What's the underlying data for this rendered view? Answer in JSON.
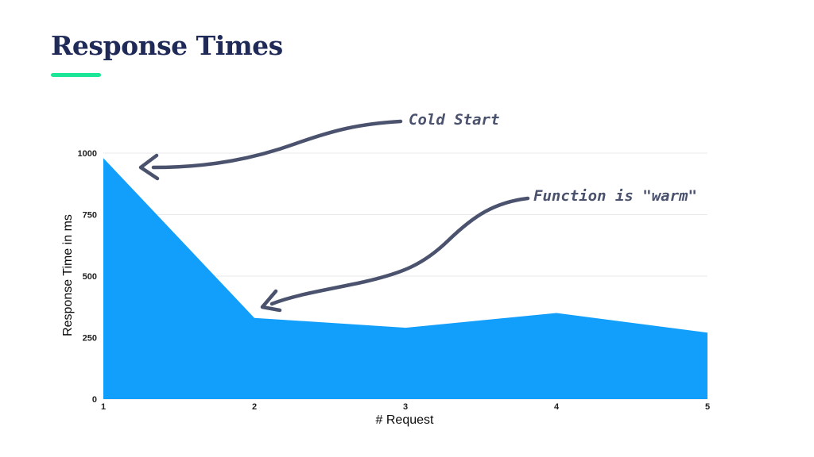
{
  "slide": {
    "title": "Response Times",
    "colors": {
      "title": "#202A58",
      "accent": "#1BE596",
      "area_fill": "#129EFB",
      "annotation_ink": "#4A526E",
      "gridline": "#EAEAEA",
      "axis_text": "#1F1F1F"
    }
  },
  "chart_data": {
    "type": "area",
    "title": "Response Times",
    "xlabel": "# Request",
    "ylabel": "Response Time in ms",
    "x": [
      1,
      2,
      3,
      4,
      5
    ],
    "series": [
      {
        "name": "Response Time in ms",
        "values": [
          980,
          330,
          290,
          350,
          270
        ]
      }
    ],
    "unit": "ms",
    "xlim": [
      1,
      5
    ],
    "ylim": [
      0,
      1000
    ],
    "xticks": [
      1,
      2,
      3,
      4,
      5
    ],
    "yticks": [
      0,
      250,
      500,
      750,
      1000
    ],
    "grid": "horizontal",
    "legend": "none",
    "fill_color": "#129EFB"
  },
  "annotations": [
    {
      "label": "Cold Start",
      "points_to": "request 1 peak"
    },
    {
      "label": "Function is \"warm\"",
      "points_to": "request 2"
    }
  ]
}
